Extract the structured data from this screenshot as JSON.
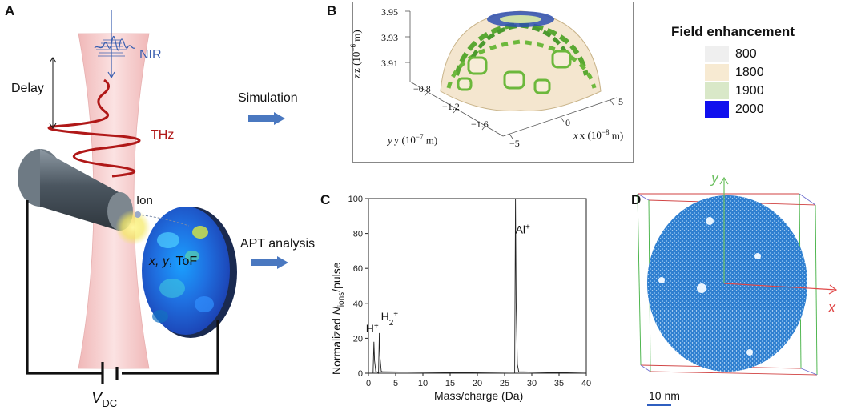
{
  "panels": {
    "a": "A",
    "b": "B",
    "c": "C",
    "d": "D"
  },
  "panel_a": {
    "nir": "NIR",
    "delay": "Delay",
    "thz": "THz",
    "ion": "Ion",
    "detector_main": "x, y",
    "detector_tof": ", ToF",
    "vdc_v": "V",
    "vdc_sub": "DC"
  },
  "arrows": {
    "simulation": "Simulation",
    "apt": "APT analysis"
  },
  "panel_b": {
    "z_label": "z (10",
    "z_exp": "−6",
    "z_unit": " m)",
    "y_label": "y (10",
    "y_exp": "−7",
    "y_unit": " m)",
    "x_label": "x (10",
    "x_exp": "−8",
    "x_unit": " m)",
    "z_ticks": [
      "3.95",
      "3.93",
      "3.91"
    ],
    "y_ticks": [
      "−0.8",
      "−1.2",
      "−1.6"
    ],
    "x_ticks": [
      "5",
      "0",
      "−5"
    ],
    "legend_title": "Field enhancement",
    "legend": [
      {
        "label": "800",
        "color": "#efefef"
      },
      {
        "label": "1800",
        "color": "#f7ead2"
      },
      {
        "label": "1900",
        "color": "#d9e8c8"
      },
      {
        "label": "2000",
        "color": "#1010ee"
      }
    ]
  },
  "panel_d": {
    "x_axis": "x",
    "y_axis": "y",
    "scalebar": "10 nm"
  },
  "chart_data": {
    "type": "line",
    "title": "",
    "xlabel": "Mass/charge (Da)",
    "ylabel_pre": "Normalized ",
    "ylabel_n": "N",
    "ylabel_sub": "ions",
    "ylabel_post": "/pulse",
    "xlim": [
      0,
      40
    ],
    "ylim": [
      0,
      100
    ],
    "x_ticks": [
      0,
      5,
      10,
      15,
      20,
      25,
      30,
      35,
      40
    ],
    "y_ticks": [
      0,
      20,
      40,
      60,
      80,
      100
    ],
    "peaks": [
      {
        "label": "H",
        "sup": "+",
        "x": 1.0,
        "y": 18
      },
      {
        "label": "H",
        "sub": "2",
        "sup": "+",
        "x": 2.0,
        "y": 23
      },
      {
        "label": "Al",
        "sup": "+",
        "x": 27.0,
        "y": 100
      }
    ]
  }
}
